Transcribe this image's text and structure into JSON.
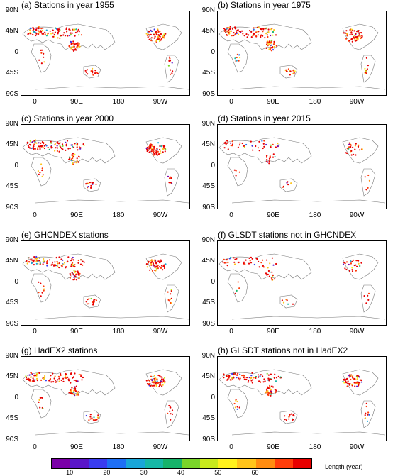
{
  "panels": [
    {
      "title": "(a) Stations in year 1955"
    },
    {
      "title": "(b) Stations in year 1975"
    },
    {
      "title": "(c) Stations in year 2000"
    },
    {
      "title": "(d) Stations in year 2015"
    },
    {
      "title": "(e) GHCNDEX stations"
    },
    {
      "title": "(f) GLSDT stations not in GHCNDEX"
    },
    {
      "title": "(g) HadEX2 stations"
    },
    {
      "title": "(h) GLSDT stations not in HadEX2"
    }
  ],
  "axes": {
    "lat_labels": [
      "90N",
      "45N",
      "0",
      "45S",
      "90S"
    ],
    "lon_labels": [
      "0",
      "90E",
      "180",
      "90W"
    ]
  },
  "colorbar": {
    "colors": [
      "#7b00a8",
      "#5a16c8",
      "#3a3cf0",
      "#1e6ff5",
      "#19a6d8",
      "#16b8a6",
      "#16b36a",
      "#7ad52a",
      "#c8ea1c",
      "#fff21c",
      "#ffc41a",
      "#ff8c10",
      "#ff3d0a",
      "#e80000"
    ],
    "ticks": [
      "10",
      "20",
      "30",
      "40",
      "50",
      "60"
    ],
    "unit_label": "Length (year)"
  }
}
